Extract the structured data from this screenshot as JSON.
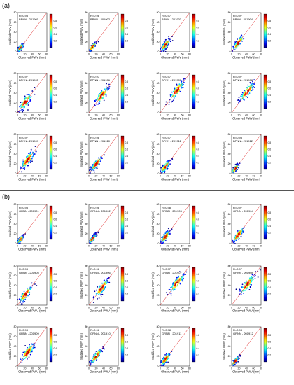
{
  "figure": {
    "section_a_label": "(a)",
    "section_b_label": "(b)"
  },
  "chart_data": [
    {
      "type": "heatmap",
      "section": "(a)",
      "stat": "R=0.98",
      "title": "BPNN - 201901",
      "xlabel": "Observed PWV (mm)",
      "ylabel": "Modified PWV (mm)",
      "xlim": [
        0,
        80
      ],
      "ylim": [
        0,
        80
      ],
      "xticks": [
        0,
        20,
        40,
        60,
        80
      ],
      "yticks": [
        0,
        20,
        40,
        60,
        80
      ],
      "colorbar_ticks": [
        0.2,
        0.4,
        0.6,
        0.8
      ],
      "cloud": {
        "center": [
          8,
          8
        ],
        "spread": [
          6,
          2
        ],
        "max_value": 60
      }
    },
    {
      "type": "heatmap",
      "section": "(a)",
      "stat": "R=0.98",
      "title": "BPNN - 201902",
      "xlabel": "Observed PWV (mm)",
      "ylabel": "Modified PWV (mm)",
      "xlim": [
        0,
        80
      ],
      "ylim": [
        0,
        80
      ],
      "xticks": [
        0,
        20,
        40,
        60,
        80
      ],
      "yticks": [
        0,
        20,
        40,
        60,
        80
      ],
      "colorbar_ticks": [
        0.2,
        0.4,
        0.6,
        0.8
      ],
      "cloud": {
        "center": [
          10,
          10
        ],
        "spread": [
          7,
          2
        ],
        "max_value": 65
      }
    },
    {
      "type": "heatmap",
      "section": "(a)",
      "stat": "R=0.97",
      "title": "BPNN - 201903",
      "xlabel": "Observed PWV (mm)",
      "ylabel": "Modified PWV (mm)",
      "xlim": [
        0,
        80
      ],
      "ylim": [
        0,
        80
      ],
      "xticks": [
        0,
        20,
        40,
        60,
        80
      ],
      "yticks": [
        0,
        20,
        40,
        60,
        80
      ],
      "colorbar_ticks": [
        0.2,
        0.4,
        0.6,
        0.8
      ],
      "cloud": {
        "center": [
          14,
          14
        ],
        "spread": [
          9,
          3
        ],
        "max_value": 70
      }
    },
    {
      "type": "heatmap",
      "section": "(a)",
      "stat": "R=0.97",
      "title": "BPNN - 201904",
      "xlabel": "Observed PWV (mm)",
      "ylabel": "Modified PWV (mm)",
      "xlim": [
        0,
        80
      ],
      "ylim": [
        0,
        80
      ],
      "xticks": [
        0,
        20,
        40,
        60,
        80
      ],
      "yticks": [
        0,
        20,
        40,
        60,
        80
      ],
      "colorbar_ticks": [
        0.2,
        0.4,
        0.6,
        0.8
      ],
      "cloud": {
        "center": [
          18,
          18
        ],
        "spread": [
          11,
          3
        ],
        "max_value": 72
      }
    },
    {
      "type": "heatmap",
      "section": "(a)",
      "stat": "R=0.97",
      "title": "BPNN - 201905",
      "xlabel": "Observed PWV (mm)",
      "ylabel": "Modified PWV (mm)",
      "xlim": [
        0,
        80
      ],
      "ylim": [
        0,
        80
      ],
      "xticks": [
        0,
        20,
        40,
        60,
        80
      ],
      "yticks": [
        0,
        20,
        40,
        60,
        80
      ],
      "colorbar_ticks": [
        0.2,
        0.4,
        0.6,
        0.8
      ],
      "cloud": {
        "center": [
          22,
          22
        ],
        "spread": [
          12,
          4
        ],
        "max_value": 75
      }
    },
    {
      "type": "heatmap",
      "section": "(a)",
      "stat": "R=0.97",
      "title": "BPNN - 201906",
      "xlabel": "Observed PWV (mm)",
      "ylabel": "Modified PWV (mm)",
      "xlim": [
        0,
        80
      ],
      "ylim": [
        0,
        80
      ],
      "xticks": [
        0,
        20,
        40,
        60,
        80
      ],
      "yticks": [
        0,
        20,
        40,
        60,
        80
      ],
      "colorbar_ticks": [
        0.2,
        0.4,
        0.6,
        0.8
      ],
      "cloud": {
        "center": [
          35,
          35
        ],
        "spread": [
          13,
          4
        ],
        "max_value": 78
      }
    },
    {
      "type": "heatmap",
      "section": "(a)",
      "stat": "R=0.97",
      "title": "BPNN - 201907",
      "xlabel": "Observed PWV (mm)",
      "ylabel": "Modified PWV (mm)",
      "xlim": [
        0,
        80
      ],
      "ylim": [
        0,
        80
      ],
      "xticks": [
        0,
        20,
        40,
        60,
        80
      ],
      "yticks": [
        0,
        20,
        40,
        60,
        80
      ],
      "colorbar_ticks": [
        0.2,
        0.4,
        0.6,
        0.8
      ],
      "cloud": {
        "center": [
          45,
          45
        ],
        "spread": [
          14,
          4
        ],
        "max_value": 80
      }
    },
    {
      "type": "heatmap",
      "section": "(a)",
      "stat": "R=0.97",
      "title": "BPNN - 201908",
      "xlabel": "Observed PWV (mm)",
      "ylabel": "Modified PWV (mm)",
      "xlim": [
        0,
        80
      ],
      "ylim": [
        0,
        80
      ],
      "xticks": [
        0,
        20,
        40,
        60,
        80
      ],
      "yticks": [
        0,
        20,
        40,
        60,
        80
      ],
      "colorbar_ticks": [
        0.2,
        0.4,
        0.6,
        0.8
      ],
      "cloud": {
        "center": [
          42,
          42
        ],
        "spread": [
          14,
          4
        ],
        "max_value": 80
      }
    },
    {
      "type": "heatmap",
      "section": "(a)",
      "stat": "R=0.97",
      "title": "BPNN - 201909",
      "xlabel": "Observed PWV (mm)",
      "ylabel": "Modified PWV (mm)",
      "xlim": [
        0,
        80
      ],
      "ylim": [
        0,
        80
      ],
      "xticks": [
        0,
        20,
        40,
        60,
        80
      ],
      "yticks": [
        0,
        20,
        40,
        60,
        80
      ],
      "colorbar_ticks": [
        0.2,
        0.4,
        0.6,
        0.8
      ],
      "cloud": {
        "center": [
          28,
          28
        ],
        "spread": [
          13,
          4
        ],
        "max_value": 75
      }
    },
    {
      "type": "heatmap",
      "section": "(a)",
      "stat": "R=0.98",
      "title": "BPNN - 201910",
      "xlabel": "Observed PWV (mm)",
      "ylabel": "Modified PWV (mm)",
      "xlim": [
        0,
        80
      ],
      "ylim": [
        0,
        80
      ],
      "xticks": [
        0,
        20,
        40,
        60,
        80
      ],
      "yticks": [
        0,
        20,
        40,
        60,
        80
      ],
      "colorbar_ticks": [
        0.2,
        0.4,
        0.6,
        0.8
      ],
      "cloud": {
        "center": [
          20,
          20
        ],
        "spread": [
          11,
          3
        ],
        "max_value": 70
      }
    },
    {
      "type": "heatmap",
      "section": "(a)",
      "stat": "R=0.97",
      "title": "BPNN - 201911",
      "xlabel": "Observed PWV (mm)",
      "ylabel": "Modified PWV (mm)",
      "xlim": [
        0,
        80
      ],
      "ylim": [
        0,
        80
      ],
      "xticks": [
        0,
        20,
        40,
        60,
        80
      ],
      "yticks": [
        0,
        20,
        40,
        60,
        80
      ],
      "colorbar_ticks": [
        0.2,
        0.4,
        0.6,
        0.8
      ],
      "cloud": {
        "center": [
          14,
          14
        ],
        "spread": [
          9,
          3
        ],
        "max_value": 65
      }
    },
    {
      "type": "heatmap",
      "section": "(a)",
      "stat": "R=0.98",
      "title": "BPNN - 201912",
      "xlabel": "Observed PWV (mm)",
      "ylabel": "Modified PWV (mm)",
      "xlim": [
        0,
        80
      ],
      "ylim": [
        0,
        80
      ],
      "xticks": [
        0,
        20,
        40,
        60,
        80
      ],
      "yticks": [
        0,
        20,
        40,
        60,
        80
      ],
      "colorbar_ticks": [
        0.2,
        0.4,
        0.6,
        0.8
      ],
      "cloud": {
        "center": [
          10,
          10
        ],
        "spread": [
          7,
          2
        ],
        "max_value": 60
      }
    },
    {
      "type": "heatmap",
      "section": "(b)",
      "stat": "R=0.98",
      "title": "GRNN - 201901",
      "xlabel": "Observed PWV (mm)",
      "ylabel": "Modified PWV (mm)",
      "xlim": [
        0,
        80
      ],
      "ylim": [
        0,
        80
      ],
      "xticks": [
        0,
        20,
        40,
        60,
        80
      ],
      "yticks": [
        0,
        20,
        40,
        60,
        80
      ],
      "colorbar_ticks": [
        0.2,
        0.4,
        0.6,
        0.8
      ],
      "cloud": {
        "center": [
          8,
          8
        ],
        "spread": [
          6,
          2
        ],
        "max_value": 60
      }
    },
    {
      "type": "heatmap",
      "section": "(b)",
      "stat": "R=0.98",
      "title": "GRNN - 201902",
      "xlabel": "Observed PWV (mm)",
      "ylabel": "Modified PWV (mm)",
      "xlim": [
        0,
        80
      ],
      "ylim": [
        0,
        80
      ],
      "xticks": [
        0,
        20,
        40,
        60,
        80
      ],
      "yticks": [
        0,
        20,
        40,
        60,
        80
      ],
      "colorbar_ticks": [
        0.2,
        0.4,
        0.6,
        0.8
      ],
      "cloud": {
        "center": [
          10,
          10
        ],
        "spread": [
          7,
          2
        ],
        "max_value": 65
      }
    },
    {
      "type": "heatmap",
      "section": "(b)",
      "stat": "R=0.98",
      "title": "GRNN - 201903",
      "xlabel": "Observed PWV (mm)",
      "ylabel": "Modified PWV (mm)",
      "xlim": [
        0,
        80
      ],
      "ylim": [
        0,
        80
      ],
      "xticks": [
        0,
        20,
        40,
        60,
        80
      ],
      "yticks": [
        0,
        20,
        40,
        60,
        80
      ],
      "colorbar_ticks": [
        0.2,
        0.4,
        0.6,
        0.8
      ],
      "cloud": {
        "center": [
          14,
          14
        ],
        "spread": [
          9,
          3
        ],
        "max_value": 70
      }
    },
    {
      "type": "heatmap",
      "section": "(b)",
      "stat": "R=0.97",
      "title": "GRNN - 201904",
      "xlabel": "Observed PWV (mm)",
      "ylabel": "Modified PWV (mm)",
      "xlim": [
        0,
        80
      ],
      "ylim": [
        0,
        80
      ],
      "xticks": [
        0,
        20,
        40,
        60,
        80
      ],
      "yticks": [
        0,
        20,
        40,
        60,
        80
      ],
      "colorbar_ticks": [
        0.2,
        0.4,
        0.6,
        0.8
      ],
      "cloud": {
        "center": [
          18,
          18
        ],
        "spread": [
          11,
          3
        ],
        "max_value": 72
      }
    },
    {
      "type": "heatmap",
      "section": "(b)",
      "stat": "R=0.98",
      "title": "GRNN - 201905",
      "xlabel": "Observed PWV (mm)",
      "ylabel": "Modified PWV (mm)",
      "xlim": [
        0,
        80
      ],
      "ylim": [
        0,
        80
      ],
      "xticks": [
        0,
        20,
        40,
        60,
        80
      ],
      "yticks": [
        0,
        20,
        40,
        60,
        80
      ],
      "colorbar_ticks": [
        0.2,
        0.4,
        0.6,
        0.8
      ],
      "cloud": {
        "center": [
          22,
          22
        ],
        "spread": [
          12,
          4
        ],
        "max_value": 75
      }
    },
    {
      "type": "heatmap",
      "section": "(b)",
      "stat": "R=0.98",
      "title": "GRNN - 201906",
      "xlabel": "Observed PWV (mm)",
      "ylabel": "Modified PWV (mm)",
      "xlim": [
        0,
        80
      ],
      "ylim": [
        0,
        80
      ],
      "xticks": [
        0,
        20,
        40,
        60,
        80
      ],
      "yticks": [
        0,
        20,
        40,
        60,
        80
      ],
      "colorbar_ticks": [
        0.2,
        0.4,
        0.6,
        0.8
      ],
      "cloud": {
        "center": [
          35,
          35
        ],
        "spread": [
          13,
          4
        ],
        "max_value": 78
      }
    },
    {
      "type": "heatmap",
      "section": "(b)",
      "stat": "R=0.97",
      "title": "GRNN - 201907",
      "xlabel": "Observed PWV (mm)",
      "ylabel": "Modified PWV (mm)",
      "xlim": [
        0,
        80
      ],
      "ylim": [
        0,
        80
      ],
      "xticks": [
        0,
        20,
        40,
        60,
        80
      ],
      "yticks": [
        0,
        20,
        40,
        60,
        80
      ],
      "colorbar_ticks": [
        0.2,
        0.4,
        0.6,
        0.8
      ],
      "cloud": {
        "center": [
          45,
          45
        ],
        "spread": [
          14,
          4
        ],
        "max_value": 80
      }
    },
    {
      "type": "heatmap",
      "section": "(b)",
      "stat": "R=0.97",
      "title": "GRNN - 201908",
      "xlabel": "Observed PWV (mm)",
      "ylabel": "Modified PWV (mm)",
      "xlim": [
        0,
        80
      ],
      "ylim": [
        0,
        80
      ],
      "xticks": [
        0,
        20,
        40,
        60,
        80
      ],
      "yticks": [
        0,
        20,
        40,
        60,
        80
      ],
      "colorbar_ticks": [
        0.2,
        0.4,
        0.6,
        0.8
      ],
      "cloud": {
        "center": [
          42,
          42
        ],
        "spread": [
          14,
          4
        ],
        "max_value": 80
      }
    },
    {
      "type": "heatmap",
      "section": "(b)",
      "stat": "R=0.98",
      "title": "GRNN - 201909",
      "xlabel": "Observed PWV (mm)",
      "ylabel": "Modified PWV (mm)",
      "xlim": [
        0,
        80
      ],
      "ylim": [
        0,
        80
      ],
      "xticks": [
        0,
        20,
        40,
        60,
        80
      ],
      "yticks": [
        0,
        20,
        40,
        60,
        80
      ],
      "colorbar_ticks": [
        0.2,
        0.4,
        0.6,
        0.8
      ],
      "cloud": {
        "center": [
          28,
          28
        ],
        "spread": [
          13,
          4
        ],
        "max_value": 75
      }
    },
    {
      "type": "heatmap",
      "section": "(b)",
      "stat": "R=0.98",
      "title": "GRNN - 201910",
      "xlabel": "Observed PWV (mm)",
      "ylabel": "Modified PWV (mm)",
      "xlim": [
        0,
        80
      ],
      "ylim": [
        0,
        80
      ],
      "xticks": [
        0,
        20,
        40,
        60,
        80
      ],
      "yticks": [
        0,
        20,
        40,
        60,
        80
      ],
      "colorbar_ticks": [
        0.2,
        0.4,
        0.6,
        0.8
      ],
      "cloud": {
        "center": [
          20,
          20
        ],
        "spread": [
          11,
          3
        ],
        "max_value": 70
      }
    },
    {
      "type": "heatmap",
      "section": "(b)",
      "stat": "R=0.98",
      "title": "GRNN - 201911",
      "xlabel": "Observed PWV (mm)",
      "ylabel": "Modified PWV (mm)",
      "xlim": [
        0,
        80
      ],
      "ylim": [
        0,
        80
      ],
      "xticks": [
        0,
        20,
        40,
        60,
        80
      ],
      "yticks": [
        0,
        20,
        40,
        60,
        80
      ],
      "colorbar_ticks": [
        0.2,
        0.4,
        0.6,
        0.8
      ],
      "cloud": {
        "center": [
          14,
          14
        ],
        "spread": [
          9,
          3
        ],
        "max_value": 65
      }
    },
    {
      "type": "heatmap",
      "section": "(b)",
      "stat": "R=0.98",
      "title": "GRNN - 201912",
      "xlabel": "Observed PWV (mm)",
      "ylabel": "Modified PWV (mm)",
      "xlim": [
        0,
        80
      ],
      "ylim": [
        0,
        80
      ],
      "xticks": [
        0,
        20,
        40,
        60,
        80
      ],
      "yticks": [
        0,
        20,
        40,
        60,
        80
      ],
      "colorbar_ticks": [
        0.2,
        0.4,
        0.6,
        0.8
      ],
      "cloud": {
        "center": [
          10,
          10
        ],
        "spread": [
          7,
          2
        ],
        "max_value": 60
      }
    }
  ]
}
